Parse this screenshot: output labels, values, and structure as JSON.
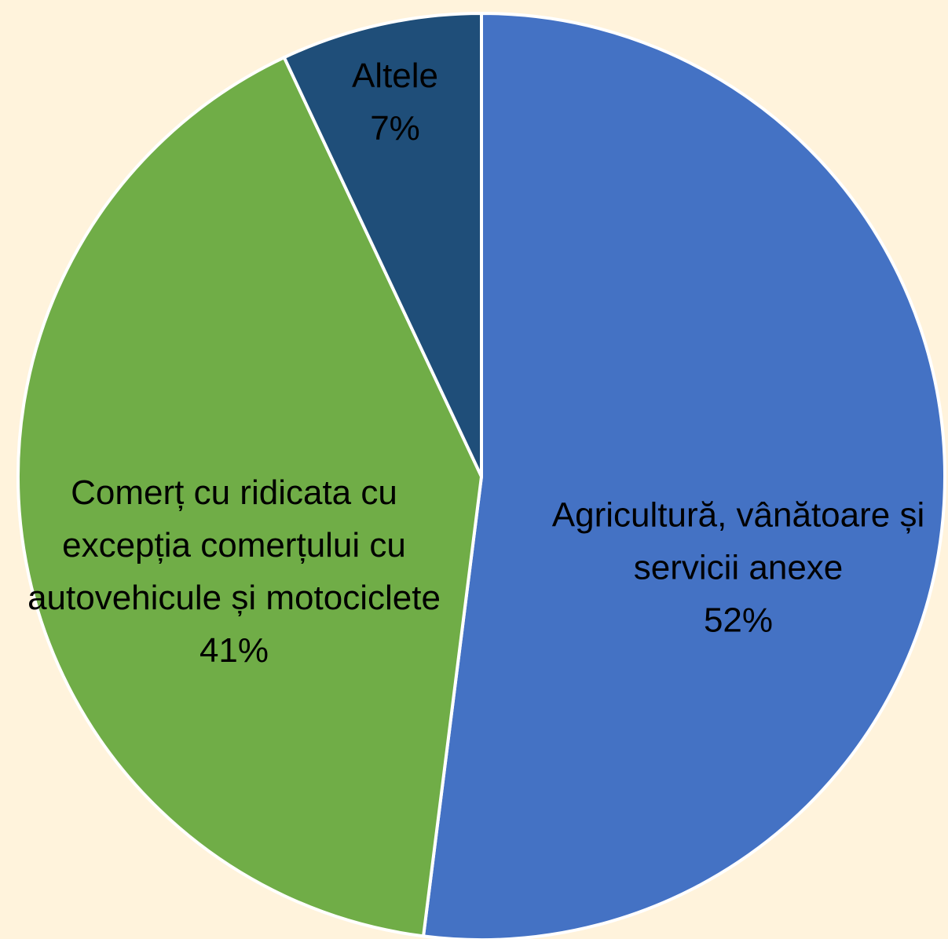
{
  "chart_data": {
    "type": "pie",
    "categories": [
      "Agricultură, vânătoare și servicii anexe",
      "Comerț cu ridicata cu excepția comerțului cu autovehicule și motociclete",
      "Altele"
    ],
    "values": [
      52,
      41,
      7
    ],
    "value_labels": [
      "52%",
      "41%",
      "7%"
    ],
    "colors": [
      "#4472c4",
      "#70ad47",
      "#1f4e79"
    ]
  }
}
